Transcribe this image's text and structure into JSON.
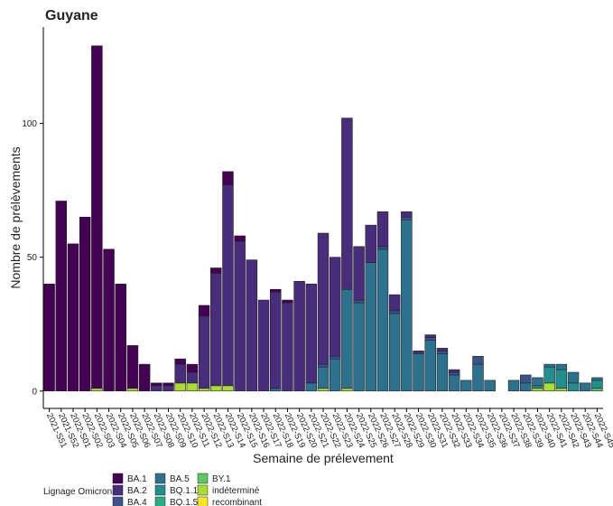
{
  "chart_data": {
    "type": "stacked-bar",
    "title": "Guyane",
    "xlabel": "Semaine de prélevement",
    "ylabel": "Nombre de prélèvements",
    "legend_title": "Lignage Omicron",
    "categories": [
      "2021-S51",
      "2021-S52",
      "2022-S01",
      "2022-S02",
      "2022-S03",
      "2022-S04",
      "2022-S05",
      "2022-S06",
      "2022-S07",
      "2022-S08",
      "2022-S09",
      "2022-S10",
      "2022-S11",
      "2022-S12",
      "2022-S13",
      "2022-S14",
      "2022-S15",
      "2022-S16",
      "2022-S17",
      "2022-S18",
      "2022-S19",
      "2022-S20",
      "2022-S21",
      "2022-S22",
      "2022-S23",
      "2022-S24",
      "2022-S25",
      "2022-S26",
      "2022-S27",
      "2022-S28",
      "2022-S29",
      "2022-S30",
      "2022-S31",
      "2022-S32",
      "2022-S33",
      "2022-S34",
      "2022-S35",
      "2022-S36",
      "2022-S37",
      "2022-S38",
      "2022-S39",
      "2022-S40",
      "2022-S41",
      "2022-S42",
      "2022-S43",
      "2022-S44",
      "2022-S45"
    ],
    "series": [
      {
        "name": "BA.1",
        "color": "#440154",
        "values": [
          40,
          71,
          55,
          65,
          128,
          53,
          40,
          16,
          10,
          1,
          1,
          2,
          3,
          4,
          2,
          5,
          2,
          0,
          0,
          1,
          1,
          0,
          0,
          0,
          0,
          0,
          0,
          0,
          0,
          0,
          0,
          0,
          0,
          0,
          0,
          0,
          0,
          0,
          0,
          0,
          0,
          0,
          0,
          0,
          0,
          0,
          0
        ]
      },
      {
        "name": "BA.2",
        "color": "#472d7b",
        "values": [
          0,
          0,
          0,
          0,
          0,
          0,
          0,
          0,
          0,
          2,
          2,
          7,
          4,
          27,
          42,
          75,
          56,
          49,
          34,
          36,
          33,
          41,
          37,
          49,
          37,
          64,
          20,
          14,
          13,
          6,
          2,
          1,
          1,
          1,
          1,
          0,
          0,
          0,
          0,
          0,
          0,
          0,
          0,
          0,
          0,
          0,
          0
        ]
      },
      {
        "name": "BA.4",
        "color": "#3b528b",
        "values": [
          0,
          0,
          0,
          0,
          0,
          0,
          0,
          0,
          0,
          0,
          0,
          0,
          0,
          0,
          0,
          0,
          0,
          0,
          0,
          0,
          0,
          0,
          0,
          1,
          1,
          0,
          1,
          0,
          1,
          1,
          1,
          0,
          1,
          1,
          1,
          0,
          3,
          0,
          0,
          0,
          3,
          0,
          0,
          0,
          0,
          0,
          0
        ]
      },
      {
        "name": "BA.5",
        "color": "#2c728e",
        "values": [
          0,
          0,
          0,
          0,
          0,
          0,
          0,
          0,
          0,
          0,
          0,
          0,
          0,
          0,
          0,
          0,
          0,
          0,
          0,
          1,
          0,
          0,
          3,
          8,
          12,
          37,
          33,
          48,
          53,
          29,
          64,
          14,
          19,
          14,
          6,
          4,
          10,
          4,
          0,
          4,
          3,
          3,
          1,
          2,
          4,
          3,
          1
        ]
      },
      {
        "name": "BQ.1.1",
        "color": "#21908c",
        "values": [
          0,
          0,
          0,
          0,
          0,
          0,
          0,
          0,
          0,
          0,
          0,
          0,
          0,
          0,
          0,
          0,
          0,
          0,
          0,
          0,
          0,
          0,
          0,
          0,
          0,
          0,
          0,
          0,
          0,
          0,
          0,
          0,
          0,
          0,
          0,
          0,
          0,
          0,
          0,
          0,
          0,
          1,
          6,
          7,
          3,
          0,
          3
        ]
      },
      {
        "name": "BQ.1.5",
        "color": "#27ad81",
        "values": [
          0,
          0,
          0,
          0,
          0,
          0,
          0,
          0,
          0,
          0,
          0,
          0,
          0,
          0,
          0,
          0,
          0,
          0,
          0,
          0,
          0,
          0,
          0,
          0,
          0,
          0,
          0,
          0,
          0,
          0,
          0,
          0,
          0,
          0,
          0,
          0,
          0,
          0,
          0,
          0,
          0,
          0,
          0,
          0,
          0,
          0,
          0
        ]
      },
      {
        "name": "BY.1",
        "color": "#5dc863",
        "values": [
          0,
          0,
          0,
          0,
          0,
          0,
          0,
          0,
          0,
          0,
          0,
          0,
          0,
          0,
          0,
          0,
          0,
          0,
          0,
          0,
          0,
          0,
          0,
          0,
          0,
          0,
          0,
          0,
          0,
          0,
          0,
          0,
          0,
          0,
          0,
          0,
          0,
          0,
          0,
          0,
          0,
          0,
          0,
          0,
          0,
          0,
          1
        ]
      },
      {
        "name": "indéterminé",
        "color": "#aadc32",
        "values": [
          0,
          0,
          0,
          0,
          1,
          0,
          0,
          1,
          0,
          0,
          0,
          3,
          3,
          1,
          2,
          2,
          0,
          0,
          0,
          0,
          0,
          0,
          0,
          1,
          0,
          1,
          0,
          0,
          0,
          0,
          0,
          0,
          0,
          0,
          0,
          0,
          0,
          0,
          0,
          0,
          0,
          1,
          3,
          1,
          0,
          0,
          0
        ]
      },
      {
        "name": "recombinant",
        "color": "#fde725",
        "values": [
          0,
          0,
          0,
          0,
          0,
          0,
          0,
          0,
          0,
          0,
          0,
          0,
          0,
          0,
          0,
          0,
          0,
          0,
          0,
          0,
          0,
          0,
          0,
          0,
          0,
          0,
          0,
          0,
          0,
          0,
          0,
          0,
          0,
          0,
          0,
          0,
          0,
          0,
          0,
          0,
          0,
          0,
          0,
          0,
          0,
          0,
          0
        ]
      }
    ],
    "ylim": [
      -6.5,
      136
    ],
    "yticks": [
      0,
      50,
      100
    ]
  }
}
